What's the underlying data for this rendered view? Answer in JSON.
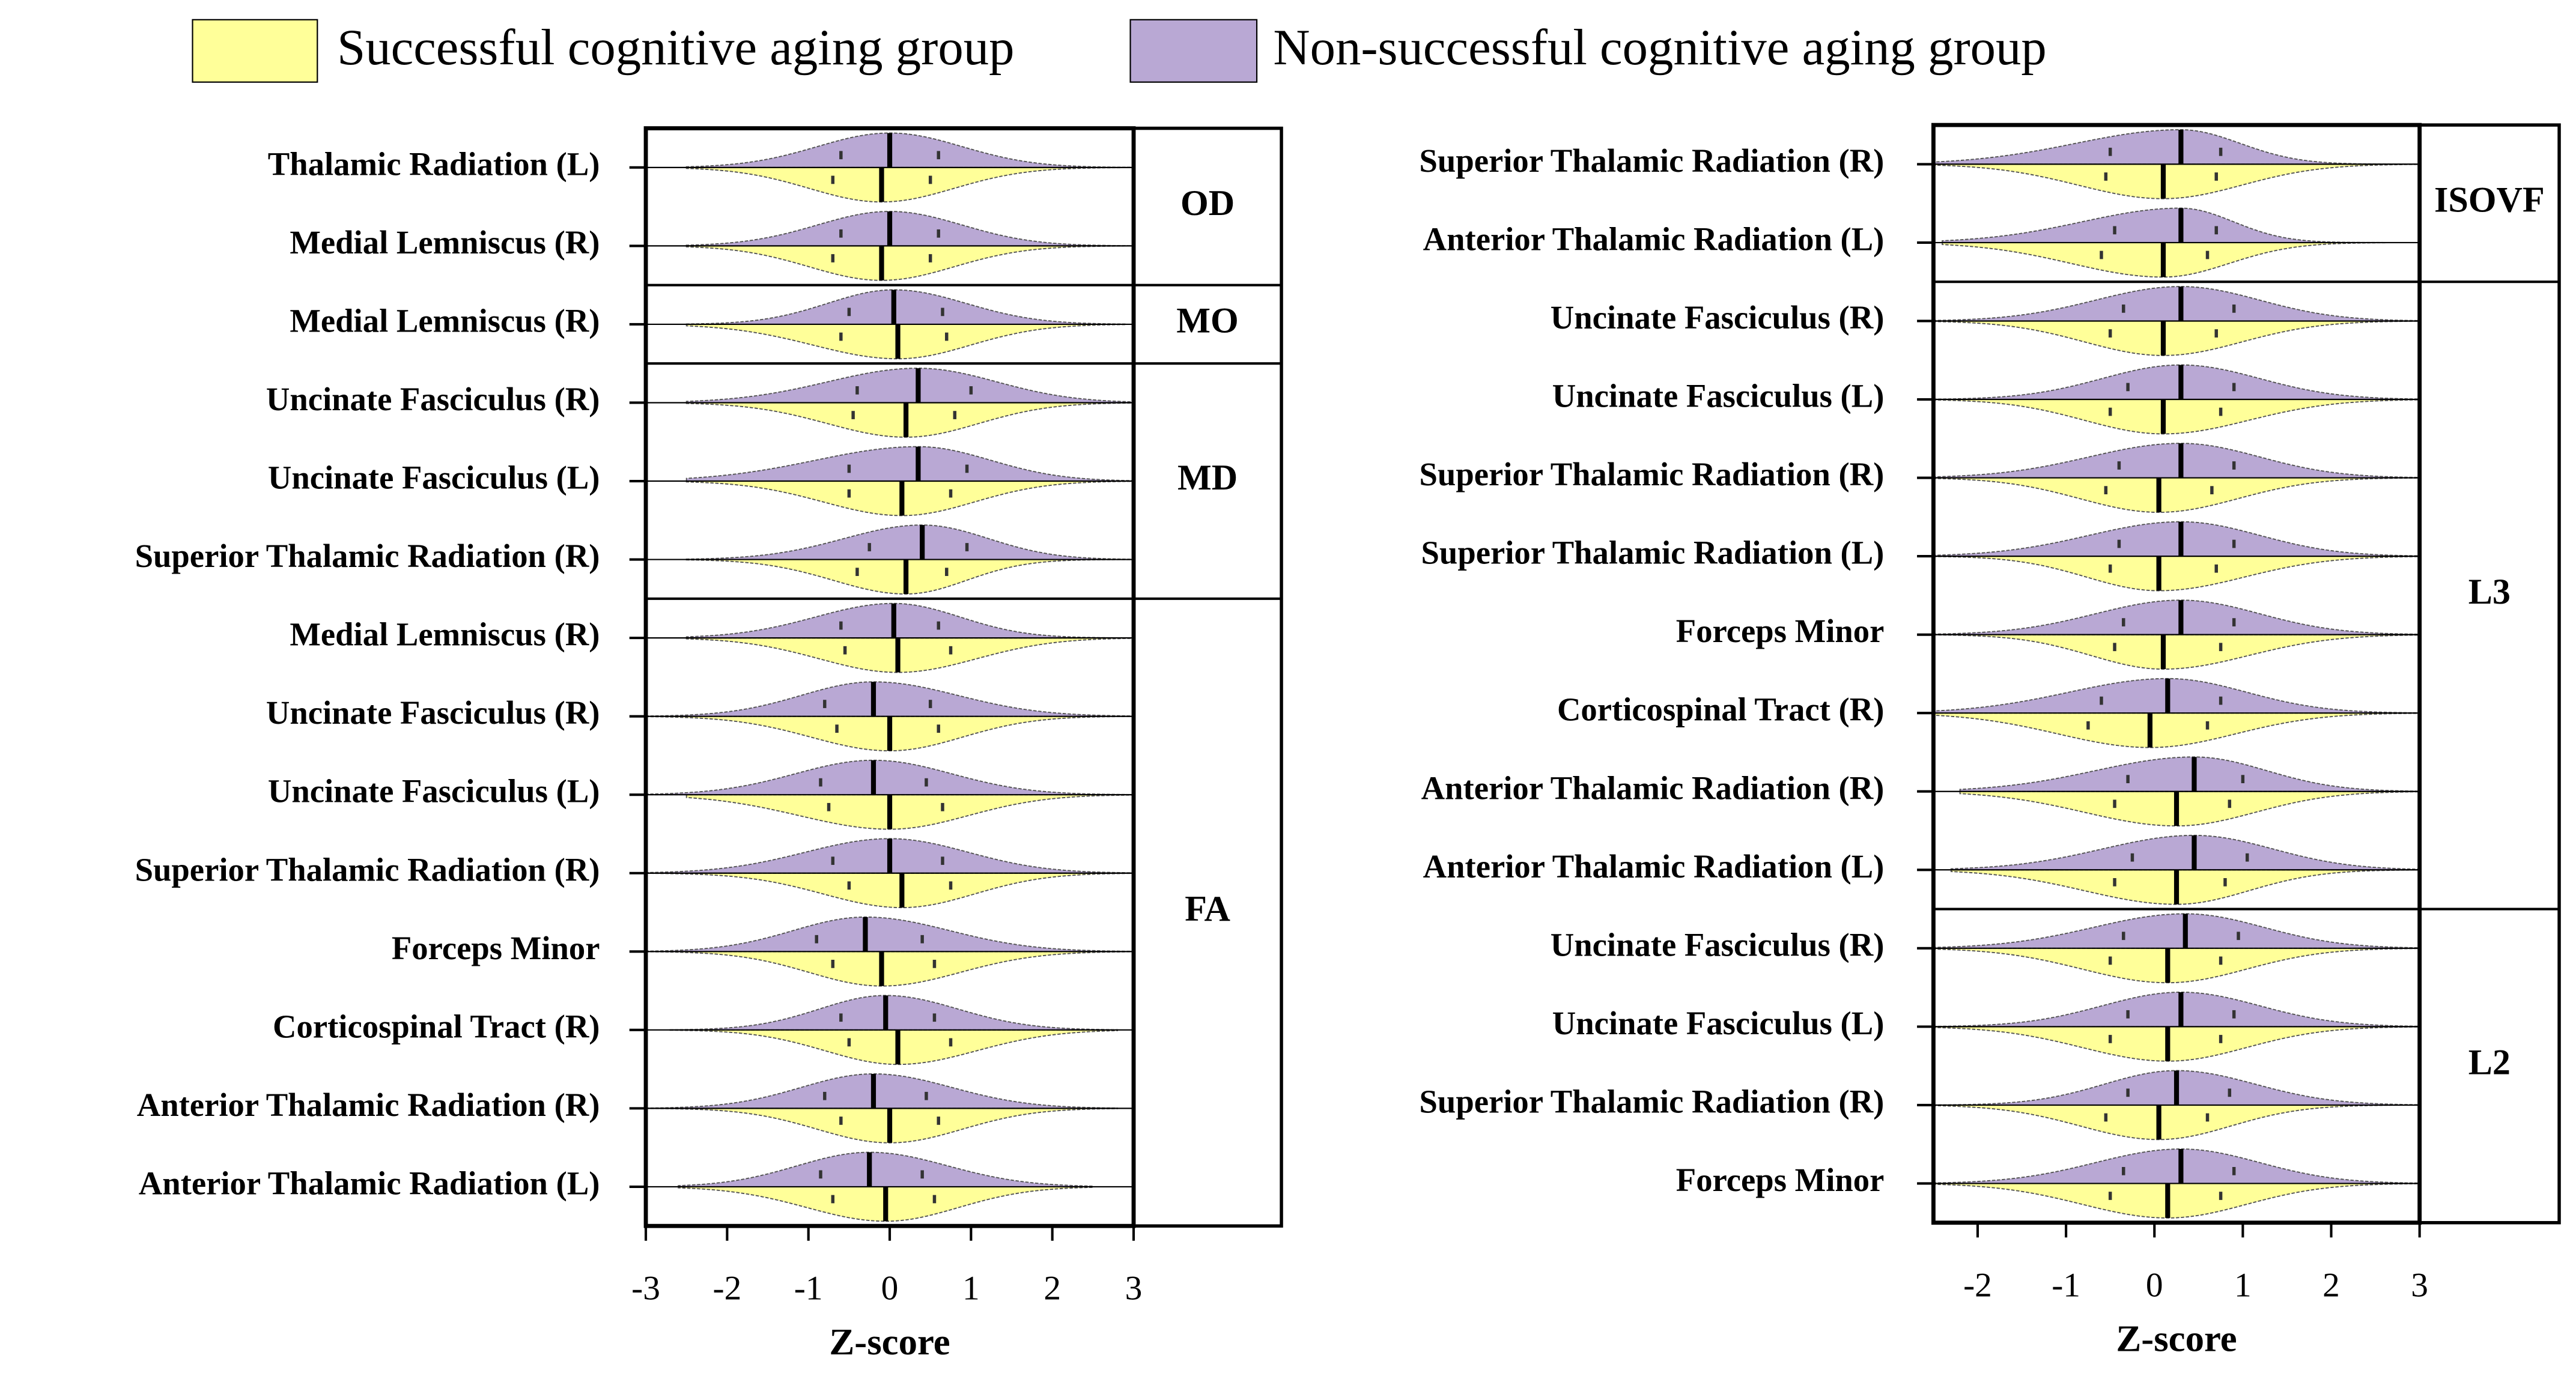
{
  "chart_data": [
    {
      "type": "violin",
      "xlabel": "Z-score",
      "xlim": [
        -3,
        3
      ],
      "xticks": [
        -3,
        -2,
        -1,
        0,
        1,
        2,
        3
      ],
      "categories": [
        "Thalamic Radiation (L)",
        "Medial Lemniscus (R)",
        "Medial Lemniscus (R)",
        "Uncinate Fasciculus (R)",
        "Uncinate Fasciculus (L)",
        "Superior Thalamic Radiation (R)",
        "Medial Lemniscus (R)",
        "Uncinate Fasciculus (R)",
        "Uncinate Fasciculus (L)",
        "Superior Thalamic Radiation (R)",
        "Forceps Minor",
        "Corticospinal Tract (R)",
        "Anterior Thalamic Radiation (R)",
        "Anterior Thalamic Radiation (L)"
      ],
      "panels": [
        "OD",
        "OD",
        "MO",
        "MD",
        "MD",
        "MD",
        "FA",
        "FA",
        "FA",
        "FA",
        "FA",
        "FA",
        "FA",
        "FA"
      ],
      "series": [
        {
          "name": "Successful cognitive aging group",
          "color": "#ffff99",
          "values": [
            [
              -2.5,
              -0.7,
              -0.1,
              0.5,
              3.0
            ],
            [
              -2.5,
              -0.7,
              -0.1,
              0.5,
              3.0
            ],
            [
              -2.5,
              -0.6,
              0.1,
              0.7,
              2.9
            ],
            [
              -2.5,
              -0.45,
              0.2,
              0.8,
              3.0
            ],
            [
              -2.5,
              -0.5,
              0.15,
              0.75,
              3.0
            ],
            [
              -2.5,
              -0.4,
              0.2,
              0.7,
              3.0
            ],
            [
              -2.5,
              -0.55,
              0.1,
              0.75,
              3.0
            ],
            [
              -3.0,
              -0.65,
              0,
              0.6,
              3.0
            ],
            [
              -2.5,
              -0.75,
              0,
              0.65,
              3.0
            ],
            [
              -3.0,
              -0.5,
              0.15,
              0.75,
              3.0
            ],
            [
              -3.0,
              -0.7,
              -0.1,
              0.55,
              3.0
            ],
            [
              -2.7,
              -0.5,
              0.1,
              0.75,
              2.8
            ],
            [
              -3.0,
              -0.6,
              0,
              0.6,
              2.8
            ],
            [
              -2.6,
              -0.7,
              -0.05,
              0.55,
              2.5
            ]
          ]
        },
        {
          "name": "Non-successful cognitive aging group",
          "color": "#b9a8d4",
          "values": [
            [
              -2.5,
              -0.6,
              0,
              0.6,
              3.0
            ],
            [
              -2.5,
              -0.6,
              0,
              0.6,
              3.0
            ],
            [
              -2.5,
              -0.5,
              0.05,
              0.65,
              2.9
            ],
            [
              -2.5,
              -0.4,
              0.35,
              1.0,
              3.0
            ],
            [
              -2.5,
              -0.5,
              0.35,
              0.95,
              3.0
            ],
            [
              -2.5,
              -0.25,
              0.4,
              0.95,
              3.0
            ],
            [
              -2.5,
              -0.6,
              0.05,
              0.6,
              3.0
            ],
            [
              -3.0,
              -0.8,
              -0.2,
              0.5,
              3.0
            ],
            [
              -3.0,
              -0.85,
              -0.2,
              0.45,
              3.0
            ],
            [
              -3.0,
              -0.7,
              0,
              0.65,
              3.0
            ],
            [
              -3.0,
              -0.9,
              -0.3,
              0.4,
              3.0
            ],
            [
              -2.7,
              -0.6,
              -0.05,
              0.55,
              2.8
            ],
            [
              -3.0,
              -0.8,
              -0.2,
              0.45,
              2.8
            ],
            [
              -2.6,
              -0.85,
              -0.25,
              0.4,
              2.5
            ]
          ]
        }
      ]
    },
    {
      "type": "violin",
      "xlabel": "Z-score",
      "xlim": [
        -2.5,
        3
      ],
      "xticks": [
        -2,
        -1,
        0,
        1,
        2,
        3
      ],
      "categories": [
        "Superior Thalamic Radiation (R)",
        "Anterior Thalamic Radiation (L)",
        "Uncinate Fasciculus (R)",
        "Uncinate Fasciculus (L)",
        "Superior Thalamic Radiation (R)",
        "Superior Thalamic Radiation (L)",
        "Forceps Minor",
        "Corticospinal Tract (R)",
        "Anterior Thalamic Radiation (R)",
        "Anterior Thalamic Radiation (L)",
        "Uncinate Fasciculus (R)",
        "Uncinate Fasciculus (L)",
        "Superior Thalamic Radiation (R)",
        "Forceps Minor"
      ],
      "panels": [
        "ISOVF",
        "ISOVF",
        "L3",
        "L3",
        "L3",
        "L3",
        "L3",
        "L3",
        "L3",
        "L3",
        "L2",
        "L2",
        "L2",
        "L2"
      ],
      "series": [
        {
          "color": "#ffff99",
          "values": [
            [
              -2.5,
              -0.55,
              0.1,
              0.7,
              3.0
            ],
            [
              -2.4,
              -0.6,
              0.1,
              0.6,
              3.0
            ],
            [
              -2.5,
              -0.5,
              0.1,
              0.7,
              3.0
            ],
            [
              -2.5,
              -0.5,
              0.1,
              0.75,
              3.0
            ],
            [
              -2.5,
              -0.55,
              0.05,
              0.65,
              3.0
            ],
            [
              -2.5,
              -0.5,
              0.05,
              0.7,
              3.0
            ],
            [
              -2.5,
              -0.45,
              0.1,
              0.75,
              3.0
            ],
            [
              -2.5,
              -0.75,
              -0.05,
              0.6,
              3.0
            ],
            [
              -2.2,
              -0.45,
              0.25,
              0.85,
              3.0
            ],
            [
              -2.3,
              -0.45,
              0.25,
              0.8,
              3.0
            ],
            [
              -2.5,
              -0.5,
              0.15,
              0.75,
              3.0
            ],
            [
              -2.5,
              -0.5,
              0.15,
              0.75,
              3.0
            ],
            [
              -2.5,
              -0.55,
              0.05,
              0.6,
              3.0
            ],
            [
              -2.5,
              -0.5,
              0.15,
              0.75,
              3.0
            ]
          ]
        },
        {
          "color": "#b9a8d4",
          "values": [
            [
              -2.5,
              -0.5,
              0.3,
              0.75,
              3.0
            ],
            [
              -2.4,
              -0.45,
              0.3,
              0.7,
              3.0
            ],
            [
              -2.5,
              -0.35,
              0.3,
              0.9,
              3.0
            ],
            [
              -2.5,
              -0.3,
              0.3,
              0.9,
              3.0
            ],
            [
              -2.5,
              -0.4,
              0.3,
              0.9,
              3.0
            ],
            [
              -2.5,
              -0.4,
              0.3,
              0.9,
              3.0
            ],
            [
              -2.5,
              -0.35,
              0.3,
              0.9,
              3.0
            ],
            [
              -2.5,
              -0.6,
              0.15,
              0.75,
              3.0
            ],
            [
              -2.2,
              -0.3,
              0.45,
              1.0,
              3.0
            ],
            [
              -2.3,
              -0.25,
              0.45,
              1.05,
              3.0
            ],
            [
              -2.5,
              -0.35,
              0.35,
              0.95,
              3.0
            ],
            [
              -2.5,
              -0.3,
              0.3,
              0.9,
              3.0
            ],
            [
              -2.5,
              -0.3,
              0.25,
              0.85,
              3.0
            ],
            [
              -2.5,
              -0.35,
              0.3,
              0.9,
              3.0
            ]
          ]
        }
      ]
    }
  ]
}
